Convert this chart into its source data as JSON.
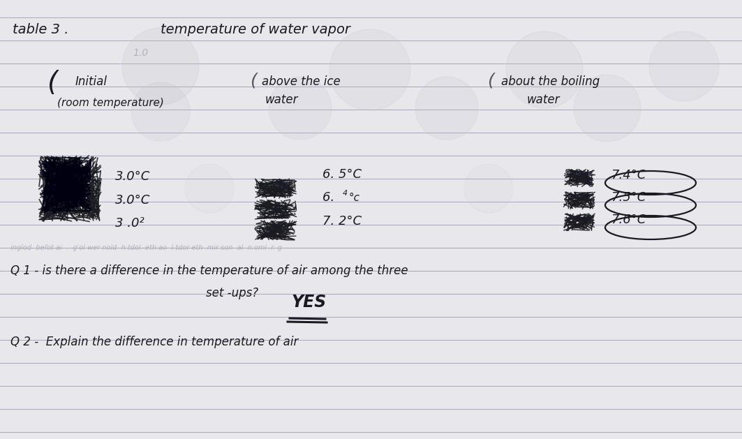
{
  "bg_color": "#e8e8ec",
  "line_color": "#a8a8b8",
  "ink_color": "#1a1a22",
  "title_left": "table 3 .",
  "title_right": "temperature of water vapor",
  "col1_header_line1": "Initial",
  "col1_header_line2": "(room temperature)",
  "col2_header_line1": "above the ice",
  "col2_header_line2": "water",
  "col3_header_line1": "about the boiling",
  "col3_header_line2": "water",
  "row1_c1": "3.0°C",
  "row2_c1": "3.0°C",
  "row3_c1": "3 .0²",
  "row1_c2": "6. 5°C",
  "row2_c2": "6. 4°c",
  "row3_c2": "7. 2°C",
  "row1_c3": "7.4°C",
  "row2_c3": "7.5°C",
  "row3_c3": "7.6°C",
  "q1_line1": "Q 1 - is there a difference in the temperature of air among the three",
  "q1_line2": "set -ups?",
  "q1_ans": "YES",
  "q2_text": "Q 2 -  Explain the difference in temperature of air",
  "figsize": [
    10.63,
    6.29
  ],
  "dpi": 100
}
